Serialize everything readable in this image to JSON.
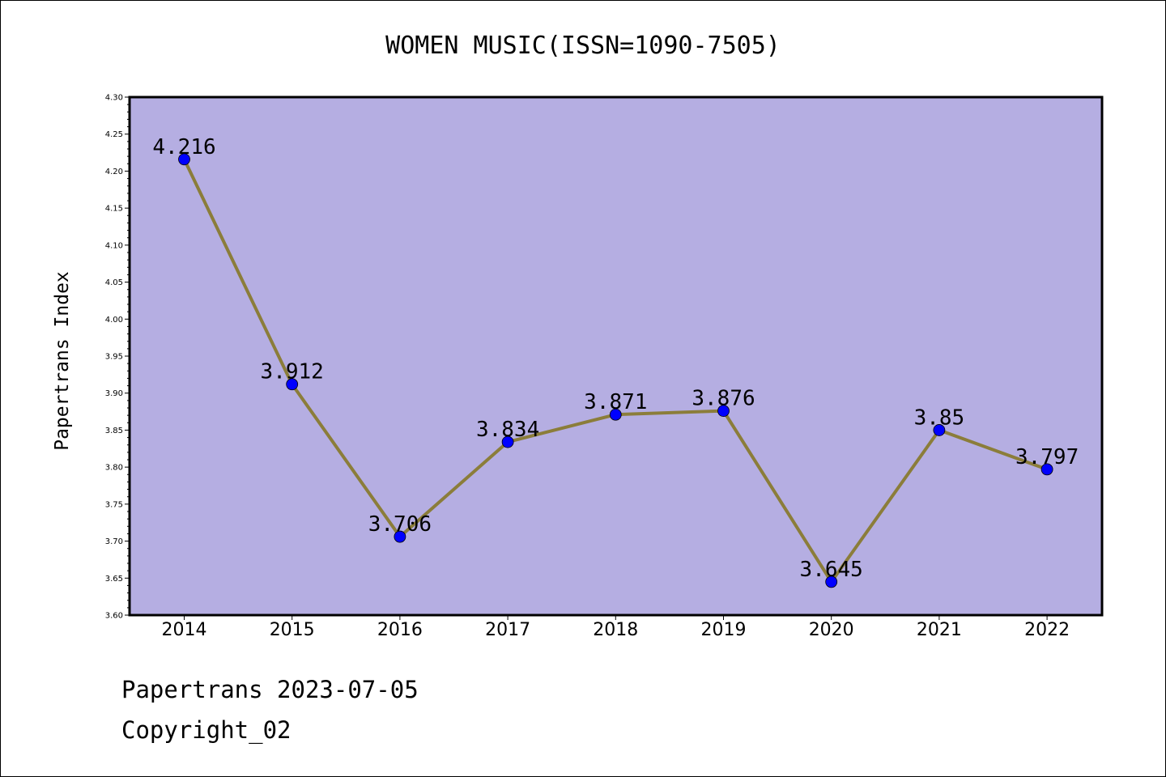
{
  "chart_data": {
    "type": "line",
    "title": "WOMEN MUSIC(ISSN=1090-7505)",
    "xlabel": "",
    "ylabel": "Papertrans Index",
    "categories": [
      "2014",
      "2015",
      "2016",
      "2017",
      "2018",
      "2019",
      "2020",
      "2021",
      "2022"
    ],
    "series": [
      {
        "values": [
          4.216,
          3.912,
          3.706,
          3.834,
          3.871,
          3.876,
          3.645,
          3.85,
          3.797
        ],
        "labels": [
          "4.216",
          "3.912",
          "3.706",
          "3.834",
          "3.871",
          "3.876",
          "3.645",
          "3.85",
          "3.797"
        ]
      }
    ],
    "ylim": [
      3.6,
      4.3
    ],
    "yticks": [
      "3.60",
      "3.65",
      "3.70",
      "3.75",
      "3.80",
      "3.85",
      "3.90",
      "3.95",
      "4.00",
      "4.05",
      "4.10",
      "4.15",
      "4.20",
      "4.25",
      "4.30"
    ],
    "grid": false,
    "legend": "none",
    "colors": {
      "plot_background": "#b5aee2",
      "line": "#8b7d3a",
      "marker": "#0000ff"
    }
  },
  "footer": {
    "line1": "Papertrans 2023-07-05",
    "line2": "Copyright_02"
  }
}
